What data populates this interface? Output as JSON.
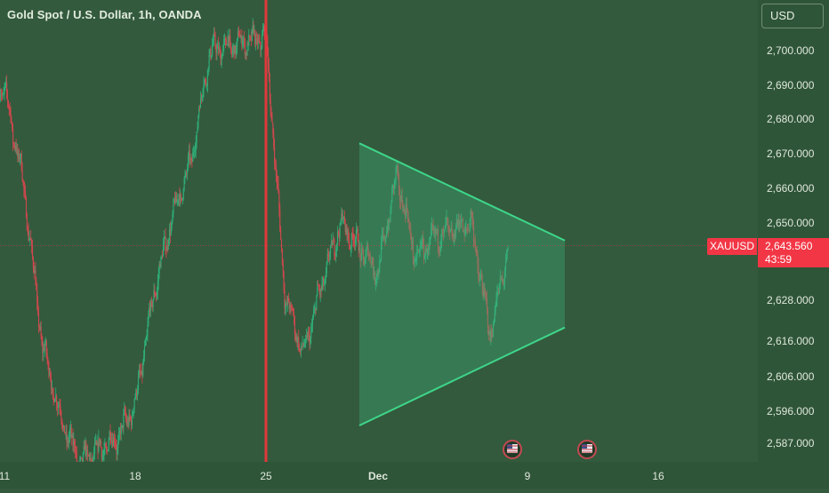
{
  "title": "Gold Spot / U.S. Dollar, 1h, OANDA",
  "currency_button": "USD",
  "last_price": {
    "symbol": "XAUUSD",
    "value": "2,643.560",
    "countdown": "43:59"
  },
  "colors": {
    "background": "#335a3d",
    "up_candle": "#2fae78",
    "down_candle": "#d2474d",
    "triangle_line": "#3ed68a",
    "triangle_fill": "#3fae78",
    "vertical_marker": "#e0383b",
    "price_tag": "#f23645"
  },
  "chart_data": {
    "type": "candlestick",
    "title": "Gold Spot / U.S. Dollar, 1h, OANDA",
    "symbol": "XAUUSD",
    "ylim": [
      2582,
      2714
    ],
    "y_tick_labels": [
      "2,700.000",
      "2,690.000",
      "2,680.000",
      "2,670.000",
      "2,660.000",
      "2,650.000",
      "2,628.000",
      "2,616.000",
      "2,606.000",
      "2,596.000",
      "2,587.000"
    ],
    "y_tick_values": [
      2700,
      2690,
      2680,
      2670,
      2660,
      2650,
      2628,
      2616,
      2606,
      2596,
      2587
    ],
    "x_tick_labels": [
      "11",
      "18",
      "25",
      "Dec",
      "9",
      "16"
    ],
    "x_tick_dates": [
      "2024-11-11",
      "2024-11-18",
      "2024-11-25",
      "2024-12-01",
      "2024-12-09",
      "2024-12-16"
    ],
    "price_path": [
      [
        "2024-11-11",
        2689
      ],
      [
        "2024-11-12",
        2662
      ],
      [
        "2024-11-13",
        2616
      ],
      [
        "2024-11-14",
        2594
      ],
      [
        "2024-11-15",
        2582
      ],
      [
        "2024-11-17",
        2588
      ],
      [
        "2024-11-18",
        2598
      ],
      [
        "2024-11-19",
        2630
      ],
      [
        "2024-11-20",
        2652
      ],
      [
        "2024-11-21",
        2668
      ],
      [
        "2024-11-22",
        2700
      ],
      [
        "2024-11-25",
        2704
      ],
      [
        "2024-11-26",
        2630
      ],
      [
        "2024-11-27",
        2612
      ],
      [
        "2024-11-28",
        2633
      ],
      [
        "2024-11-29",
        2650
      ],
      [
        "2024-12-01",
        2636
      ],
      [
        "2024-12-02",
        2664
      ],
      [
        "2024-12-03",
        2640
      ],
      [
        "2024-12-04",
        2646
      ],
      [
        "2024-12-05",
        2648
      ],
      [
        "2024-12-06",
        2650
      ],
      [
        "2024-12-07",
        2618
      ],
      [
        "2024-12-08",
        2643.56
      ]
    ],
    "triangle_pattern": {
      "upper_line": [
        [
          "2024-11-30",
          2673
        ],
        [
          "2024-12-11",
          2645
        ]
      ],
      "lower_line": [
        [
          "2024-11-30",
          2592
        ],
        [
          "2024-12-11",
          2620
        ]
      ]
    },
    "vertical_marker_date": "2024-11-25",
    "current_price": 2643.56,
    "event_markers": [
      "2024-12-08",
      "2024-12-12"
    ]
  }
}
